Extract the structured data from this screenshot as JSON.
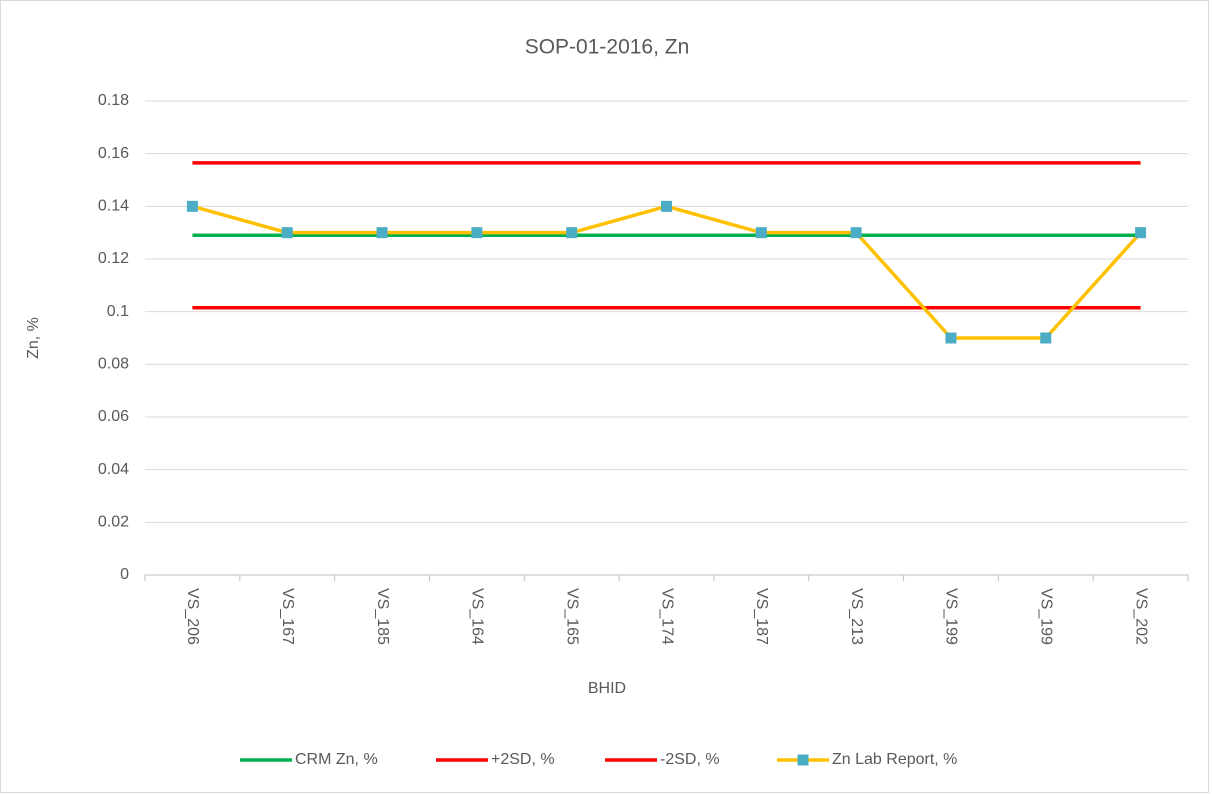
{
  "chart_data": {
    "type": "line",
    "title": "SOP-01-2016, Zn",
    "x_label": "BHID",
    "y_label": "Zn, %",
    "categories": [
      "VS_206",
      "VS_167",
      "VS_185",
      "VS_164",
      "VS_165",
      "VS_174",
      "VS_187",
      "VS_213",
      "VS_199",
      "VS_199",
      "VS_202"
    ],
    "series": [
      {
        "name": "CRM Zn, %",
        "color": "#00b050",
        "values": [
          0.129,
          0.129,
          0.129,
          0.129,
          0.129,
          0.129,
          0.129,
          0.129,
          0.129,
          0.129,
          0.129
        ]
      },
      {
        "name": "+2SD, %",
        "color": "#ff0000",
        "values": [
          0.1565,
          0.1565,
          0.1565,
          0.1565,
          0.1565,
          0.1565,
          0.1565,
          0.1565,
          0.1565,
          0.1565,
          0.1565
        ]
      },
      {
        "name": "-2SD, %",
        "color": "#ff0000",
        "values": [
          0.1015,
          0.1015,
          0.1015,
          0.1015,
          0.1015,
          0.1015,
          0.1015,
          0.1015,
          0.1015,
          0.1015,
          0.1015
        ]
      },
      {
        "name": "Zn Lab Report, %",
        "color": "#ffc000",
        "marker_color": "#4bacc6",
        "values": [
          0.14,
          0.13,
          0.13,
          0.13,
          0.13,
          0.14,
          0.13,
          0.13,
          0.09,
          0.09,
          0.13
        ]
      }
    ],
    "ylim": [
      0,
      0.18
    ],
    "yticks": [
      0,
      0.02,
      0.04,
      0.06,
      0.08,
      0.1,
      0.12,
      0.14,
      0.16,
      0.18
    ],
    "grid": true,
    "legend": "bottom"
  }
}
